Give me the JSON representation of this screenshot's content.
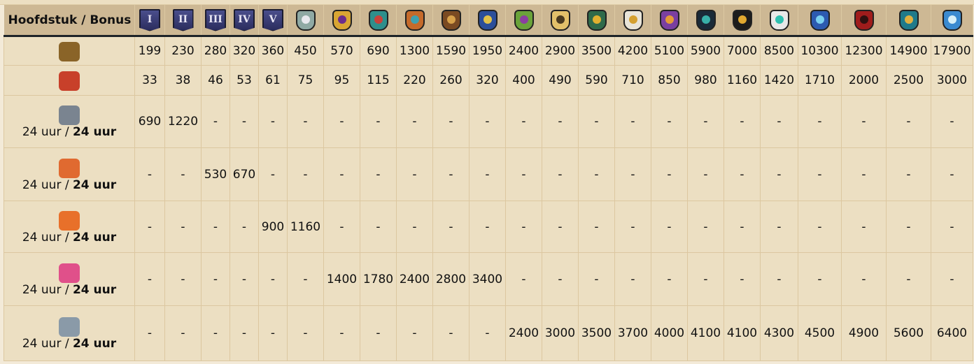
{
  "header": {
    "title": "Hoofdstuk / Bonus",
    "chapters": [
      {
        "label": "I",
        "icon": "chapter-1-banner-icon",
        "type": "banner"
      },
      {
        "label": "II",
        "icon": "chapter-2-banner-icon",
        "type": "banner"
      },
      {
        "label": "III",
        "icon": "chapter-3-banner-icon",
        "type": "banner"
      },
      {
        "label": "IV",
        "icon": "chapter-4-banner-icon",
        "type": "banner"
      },
      {
        "label": "V",
        "icon": "chapter-5-banner-icon",
        "type": "banner"
      },
      {
        "icon": "chapter-6-emblem-icon",
        "c1": "#8fa9a4",
        "c2": "#e8e8ee"
      },
      {
        "icon": "chapter-7-emblem-icon",
        "c1": "#d9a533",
        "c2": "#6b2c8c"
      },
      {
        "icon": "chapter-8-emblem-icon",
        "c1": "#2e8f8c",
        "c2": "#c8423a"
      },
      {
        "icon": "chapter-9-emblem-icon",
        "c1": "#c56a2b",
        "c2": "#3fa0b0"
      },
      {
        "icon": "chapter-10-emblem-icon",
        "c1": "#7a4a22",
        "c2": "#d7a14a"
      },
      {
        "icon": "chapter-11-emblem-icon",
        "c1": "#2c4f9a",
        "c2": "#e2c24a"
      },
      {
        "icon": "chapter-12-emblem-icon",
        "c1": "#6aa33a",
        "c2": "#8a3fa0"
      },
      {
        "icon": "chapter-13-emblem-icon",
        "c1": "#e2c06a",
        "c2": "#4a3a20"
      },
      {
        "icon": "chapter-14-emblem-icon",
        "c1": "#2f6a4a",
        "c2": "#e0b030"
      },
      {
        "icon": "chapter-15-emblem-icon",
        "c1": "#e8e4d8",
        "c2": "#d4a030"
      },
      {
        "icon": "chapter-16-emblem-icon",
        "c1": "#7a3fa0",
        "c2": "#e49a38"
      },
      {
        "icon": "chapter-17-emblem-icon",
        "c1": "#1a2a38",
        "c2": "#38b0a8"
      },
      {
        "icon": "chapter-18-emblem-icon",
        "c1": "#1c1c1c",
        "c2": "#e0a830"
      },
      {
        "icon": "chapter-19-emblem-icon",
        "c1": "#e8e8e8",
        "c2": "#2fc0b0"
      },
      {
        "icon": "chapter-20-emblem-icon",
        "c1": "#2c5ab0",
        "c2": "#7ad0f0"
      },
      {
        "icon": "chapter-21-emblem-icon",
        "c1": "#a01c1c",
        "c2": "#301010"
      },
      {
        "icon": "chapter-22-emblem-icon",
        "c1": "#1f7a8a",
        "c2": "#e0b040"
      },
      {
        "icon": "chapter-23-emblem-icon",
        "c1": "#3a8ad0",
        "c2": "#d8f0f8"
      }
    ]
  },
  "rows": [
    {
      "icon": "lyre-culture-icon",
      "color": "#8a6428",
      "values": [
        "199",
        "230",
        "280",
        "320",
        "360",
        "450",
        "570",
        "690",
        "1300",
        "1590",
        "1950",
        "2400",
        "2900",
        "3500",
        "4200",
        "5100",
        "5900",
        "7000",
        "8500",
        "10300",
        "12300",
        "14900",
        "17900"
      ]
    },
    {
      "icon": "population-faces-icon",
      "color": "#c8402a",
      "values": [
        "33",
        "38",
        "46",
        "53",
        "61",
        "75",
        "95",
        "115",
        "220",
        "260",
        "320",
        "400",
        "490",
        "590",
        "710",
        "850",
        "980",
        "1160",
        "1420",
        "1710",
        "2000",
        "2500",
        "3000"
      ]
    },
    {
      "icon": "hammer-wrench-icon",
      "color": "#7a8490",
      "duration": "24 uur / ",
      "duration_bold": "24 uur",
      "values": [
        "690",
        "1220",
        "-",
        "-",
        "-",
        "-",
        "-",
        "-",
        "-",
        "-",
        "-",
        "-",
        "-",
        "-",
        "-",
        "-",
        "-",
        "-",
        "-",
        "-",
        "-",
        "-",
        "-"
      ]
    },
    {
      "icon": "goods-crate-plus2-icon",
      "color": "#e06a30",
      "duration": "24 uur / ",
      "duration_bold": "24 uur",
      "values": [
        "-",
        "-",
        "530",
        "670",
        "-",
        "-",
        "-",
        "-",
        "-",
        "-",
        "-",
        "-",
        "-",
        "-",
        "-",
        "-",
        "-",
        "-",
        "-",
        "-",
        "-",
        "-",
        "-"
      ]
    },
    {
      "icon": "goods-crate-orange-plus2-icon",
      "color": "#e8702a",
      "duration": "24 uur / ",
      "duration_bold": "24 uur",
      "values": [
        "-",
        "-",
        "-",
        "-",
        "900",
        "1160",
        "-",
        "-",
        "-",
        "-",
        "-",
        "-",
        "-",
        "-",
        "-",
        "-",
        "-",
        "-",
        "-",
        "-",
        "-",
        "-",
        "-"
      ]
    },
    {
      "icon": "goods-crate-pink-plus2-icon",
      "color": "#e0508a",
      "duration": "24 uur / ",
      "duration_bold": "24 uur",
      "values": [
        "-",
        "-",
        "-",
        "-",
        "-",
        "-",
        "1400",
        "1780",
        "2400",
        "2800",
        "3400",
        "-",
        "-",
        "-",
        "-",
        "-",
        "-",
        "-",
        "-",
        "-",
        "-",
        "-",
        "-"
      ]
    },
    {
      "icon": "goods-crate-grey-plus2-icon",
      "color": "#8a9aa8",
      "duration": "24 uur / ",
      "duration_bold": "24 uur",
      "values": [
        "-",
        "-",
        "-",
        "-",
        "-",
        "-",
        "-",
        "-",
        "-",
        "-",
        "-",
        "2400",
        "3000",
        "3500",
        "3700",
        "4000",
        "4100",
        "4100",
        "4300",
        "4500",
        "4900",
        "5600",
        "6400"
      ]
    }
  ]
}
